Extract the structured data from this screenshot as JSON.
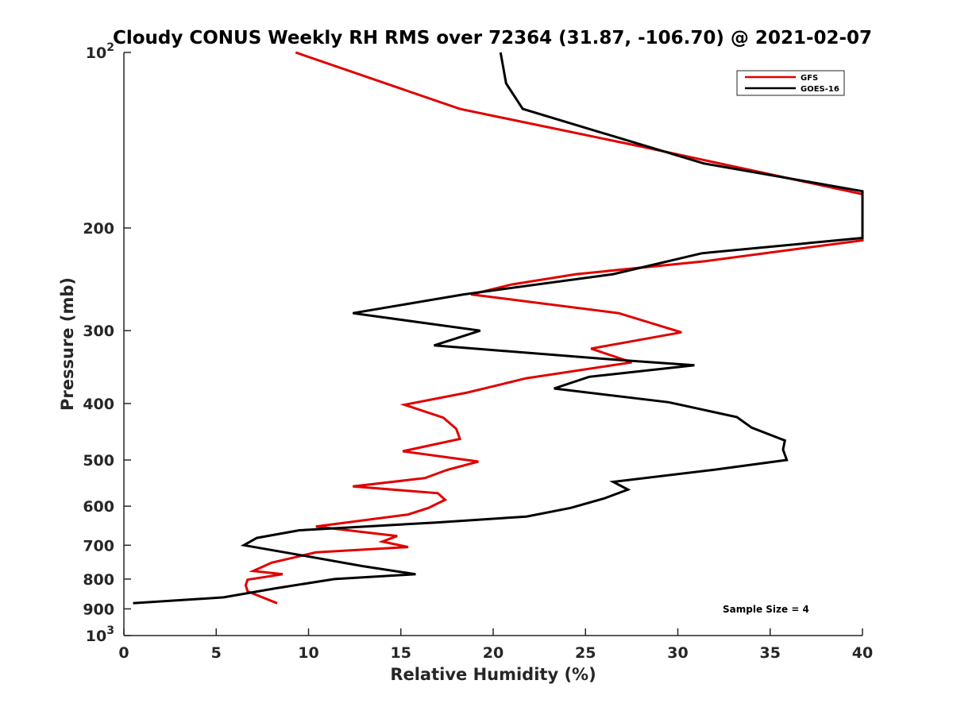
{
  "chart_data": {
    "type": "line",
    "title": "Cloudy CONUS Weekly RH RMS over 72364 (31.87, -106.70) @ 2021-02-07",
    "xlabel": "Relative Humidity (%)",
    "ylabel": "Pressure (mb)",
    "xlim": [
      0,
      40
    ],
    "ylim": [
      100,
      1000
    ],
    "yscale": "log",
    "y_reversed": true,
    "x_ticks": [
      "0",
      "5",
      "10",
      "15",
      "20",
      "25",
      "30",
      "35",
      "40"
    ],
    "y_ticks": [
      {
        "value": 100,
        "base": "10",
        "exp": "2"
      },
      {
        "value": 200,
        "label": "200"
      },
      {
        "value": 300,
        "label": "300"
      },
      {
        "value": 400,
        "label": "400"
      },
      {
        "value": 500,
        "label": "500"
      },
      {
        "value": 600,
        "label": "600"
      },
      {
        "value": 700,
        "label": "700"
      },
      {
        "value": 800,
        "label": "800"
      },
      {
        "value": 900,
        "label": "900"
      },
      {
        "value": 1000,
        "base": "10",
        "exp": "3"
      }
    ],
    "grid": false,
    "legend_position": "top-right",
    "annotation": "Sample Size = 4",
    "series": [
      {
        "name": "GFS",
        "color": "#e00000",
        "points": [
          [
            9.3,
            100
          ],
          [
            18.2,
            125
          ],
          [
            28,
            145
          ],
          [
            40,
            175
          ],
          [
            40,
            210
          ],
          [
            31.5,
            228
          ],
          [
            24.5,
            240
          ],
          [
            21,
            250
          ],
          [
            18.8,
            260
          ],
          [
            26.8,
            280
          ],
          [
            30.2,
            302
          ],
          [
            25.3,
            322
          ],
          [
            27.5,
            340
          ],
          [
            21.8,
            362
          ],
          [
            18.6,
            383
          ],
          [
            15.2,
            402
          ],
          [
            17.3,
            423
          ],
          [
            18,
            442
          ],
          [
            18.2,
            460
          ],
          [
            15.1,
            483
          ],
          [
            19.2,
            503
          ],
          [
            17.5,
            520
          ],
          [
            16.3,
            537
          ],
          [
            12.4,
            555
          ],
          [
            17,
            570
          ],
          [
            17.4,
            585
          ],
          [
            16.5,
            604
          ],
          [
            15.4,
            620
          ],
          [
            10.4,
            650
          ],
          [
            14.8,
            675
          ],
          [
            14,
            690
          ],
          [
            15.4,
            705
          ],
          [
            10.4,
            720
          ],
          [
            8,
            750
          ],
          [
            7,
            775
          ],
          [
            8.6,
            785
          ],
          [
            6.7,
            802
          ],
          [
            6.6,
            820
          ],
          [
            6.7,
            840
          ],
          [
            8.3,
            880
          ]
        ]
      },
      {
        "name": "GOES-16",
        "color": "#000000",
        "points": [
          [
            20.4,
            100
          ],
          [
            20.7,
            113
          ],
          [
            21.6,
            125
          ],
          [
            31.4,
            155
          ],
          [
            40,
            173
          ],
          [
            40,
            208
          ],
          [
            31.3,
            221
          ],
          [
            26.5,
            240
          ],
          [
            18.4,
            260
          ],
          [
            12.4,
            280
          ],
          [
            19.3,
            300
          ],
          [
            16.8,
            318
          ],
          [
            26.9,
            337
          ],
          [
            30.9,
            344
          ],
          [
            25.2,
            360
          ],
          [
            23.3,
            377
          ],
          [
            29.5,
            398
          ],
          [
            33.2,
            422
          ],
          [
            34,
            440
          ],
          [
            35.8,
            463
          ],
          [
            35.7,
            480
          ],
          [
            35.9,
            500
          ],
          [
            31.9,
            520
          ],
          [
            26.5,
            545
          ],
          [
            27.3,
            562
          ],
          [
            26,
            582
          ],
          [
            24.2,
            604
          ],
          [
            21.8,
            625
          ],
          [
            16.9,
            640
          ],
          [
            9.5,
            660
          ],
          [
            7.2,
            680
          ],
          [
            6.5,
            700
          ],
          [
            9.8,
            730
          ],
          [
            12.9,
            760
          ],
          [
            15.8,
            785
          ],
          [
            11.4,
            800
          ],
          [
            8.2,
            830
          ],
          [
            5.4,
            860
          ],
          [
            0.5,
            880
          ]
        ]
      }
    ]
  }
}
